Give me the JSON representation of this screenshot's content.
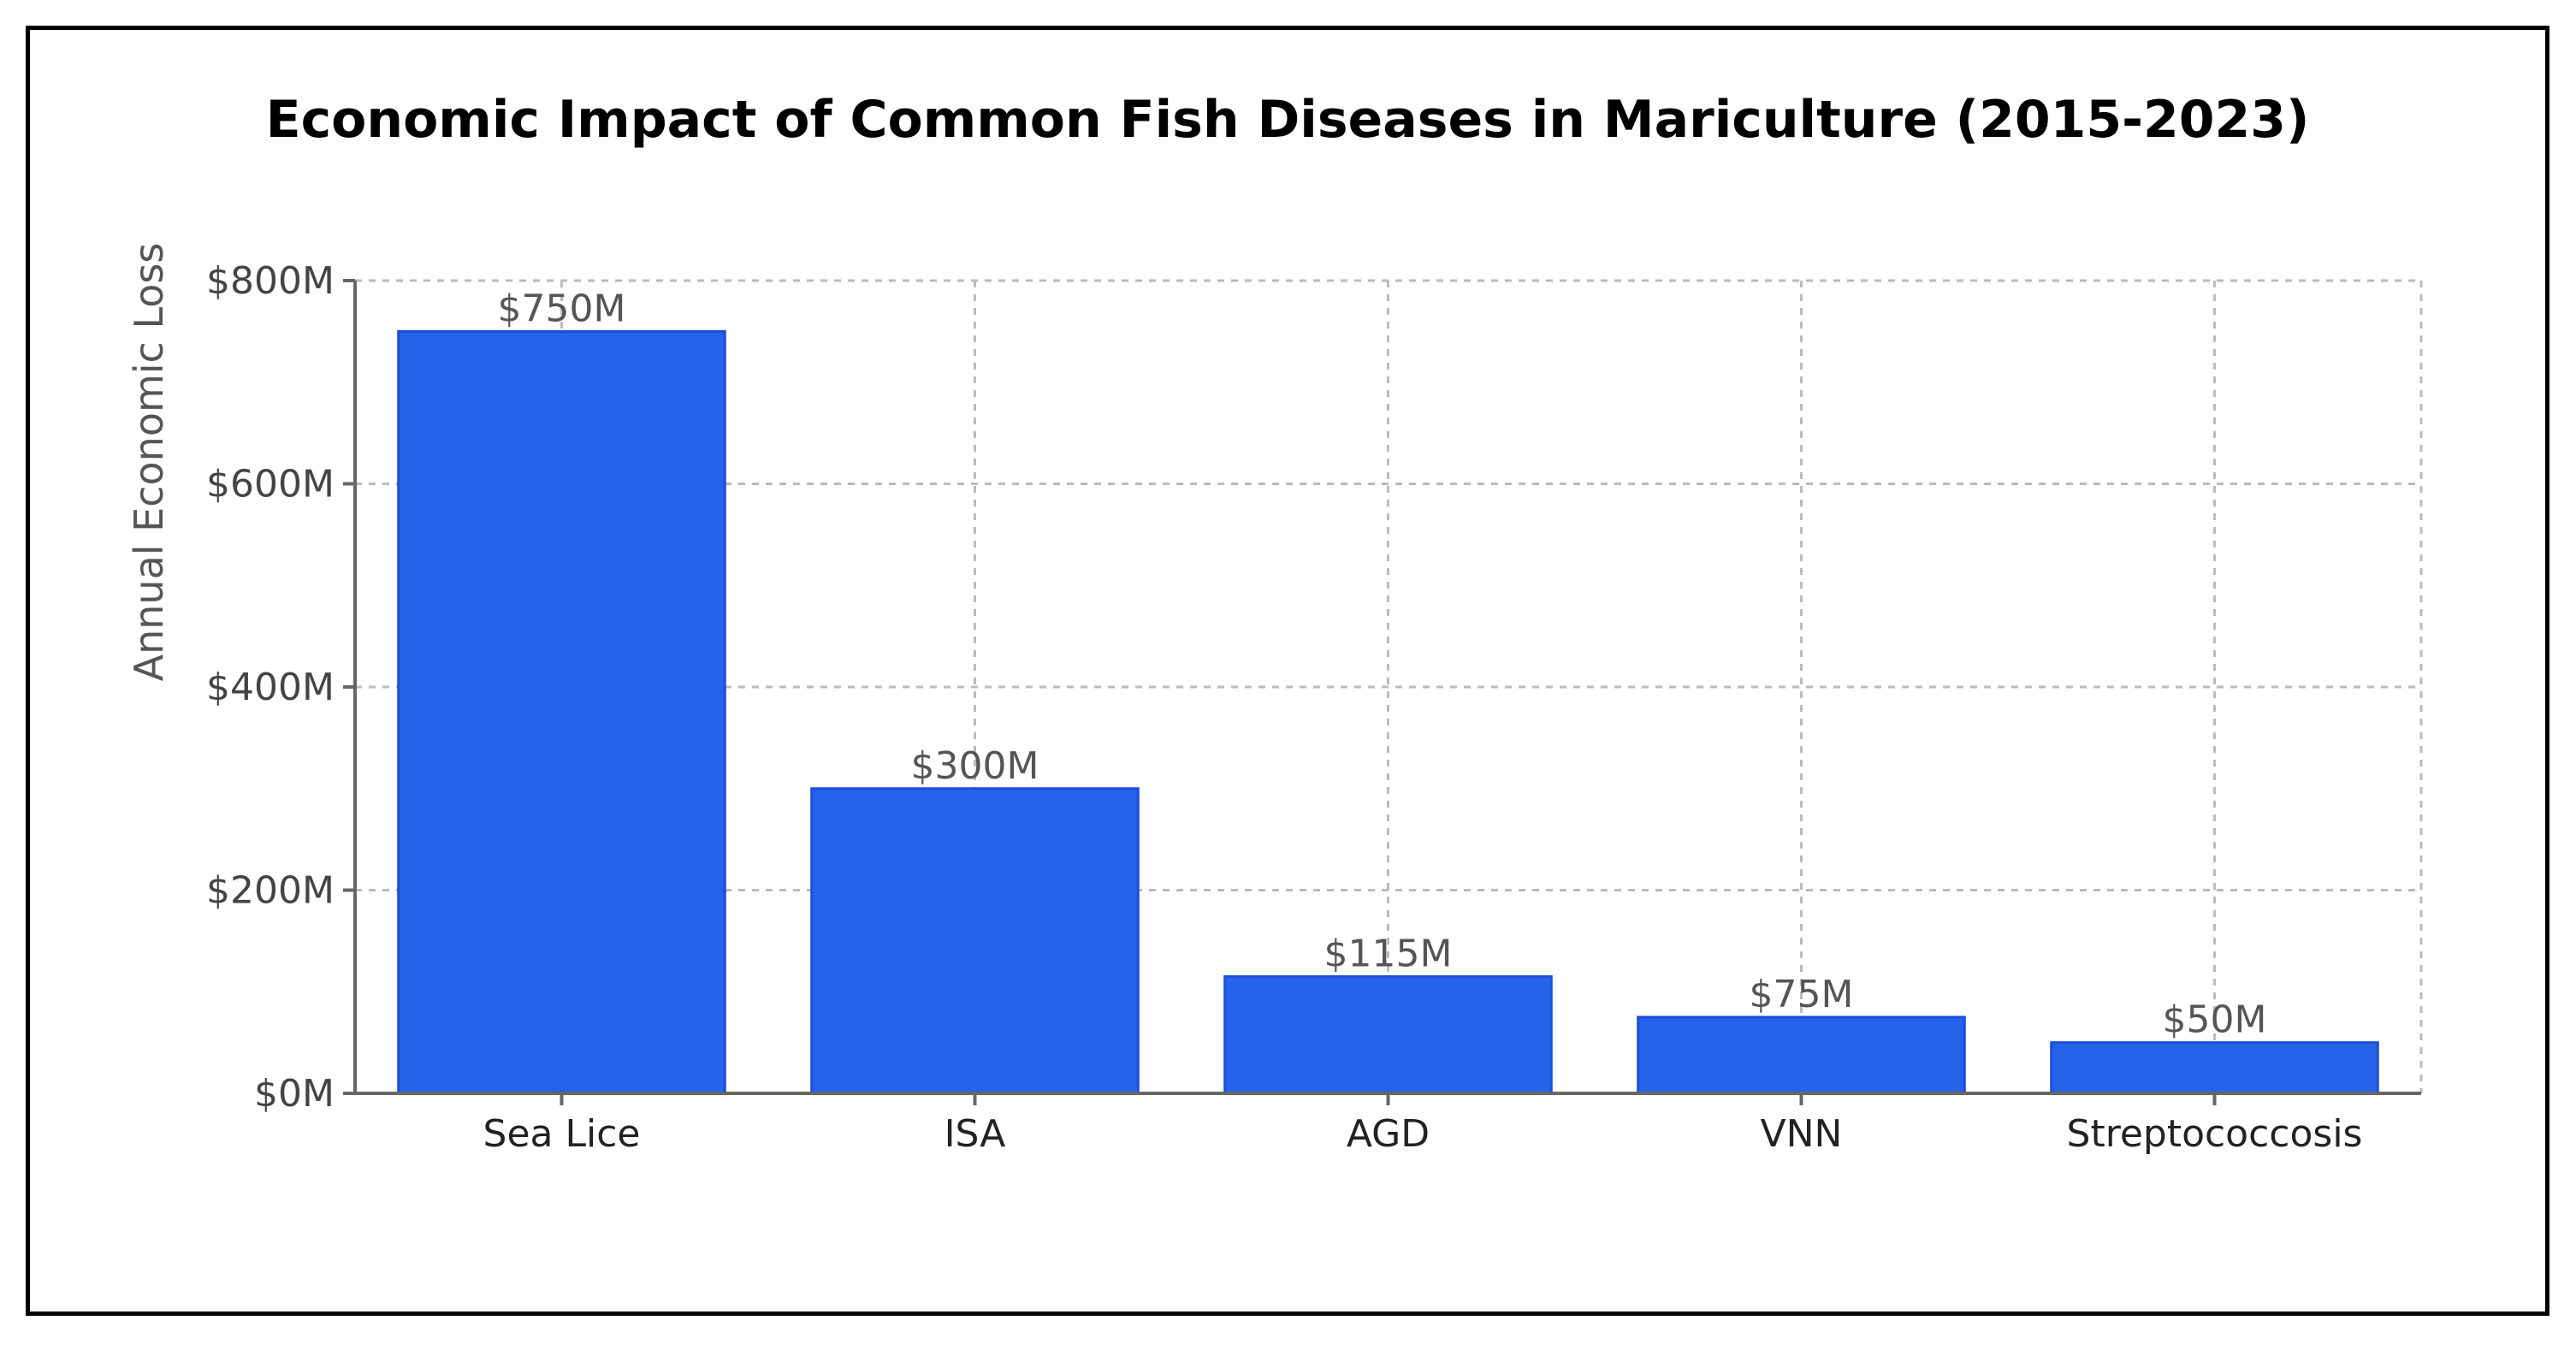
{
  "chart_data": {
    "type": "bar",
    "title": "Economic Impact of Common Fish Diseases in Mariculture (2015-2023)",
    "xlabel": "",
    "ylabel": "Annual Economic Loss",
    "categories": [
      "Sea Lice",
      "ISA",
      "AGD",
      "VNN",
      "Streptococcosis"
    ],
    "values": [
      750,
      300,
      115,
      75,
      50
    ],
    "value_labels": [
      "$750M",
      "$300M",
      "$115M",
      "$75M",
      "$50M"
    ],
    "ylim": [
      0,
      800
    ],
    "yticks": [
      0,
      200,
      400,
      600,
      800
    ],
    "ytick_labels": [
      "$0M",
      "$200M",
      "$400M",
      "$600M",
      "$800M"
    ],
    "grid": true,
    "bar_color": "#2563EB",
    "bar_edge_color": "#1D4ED8"
  }
}
